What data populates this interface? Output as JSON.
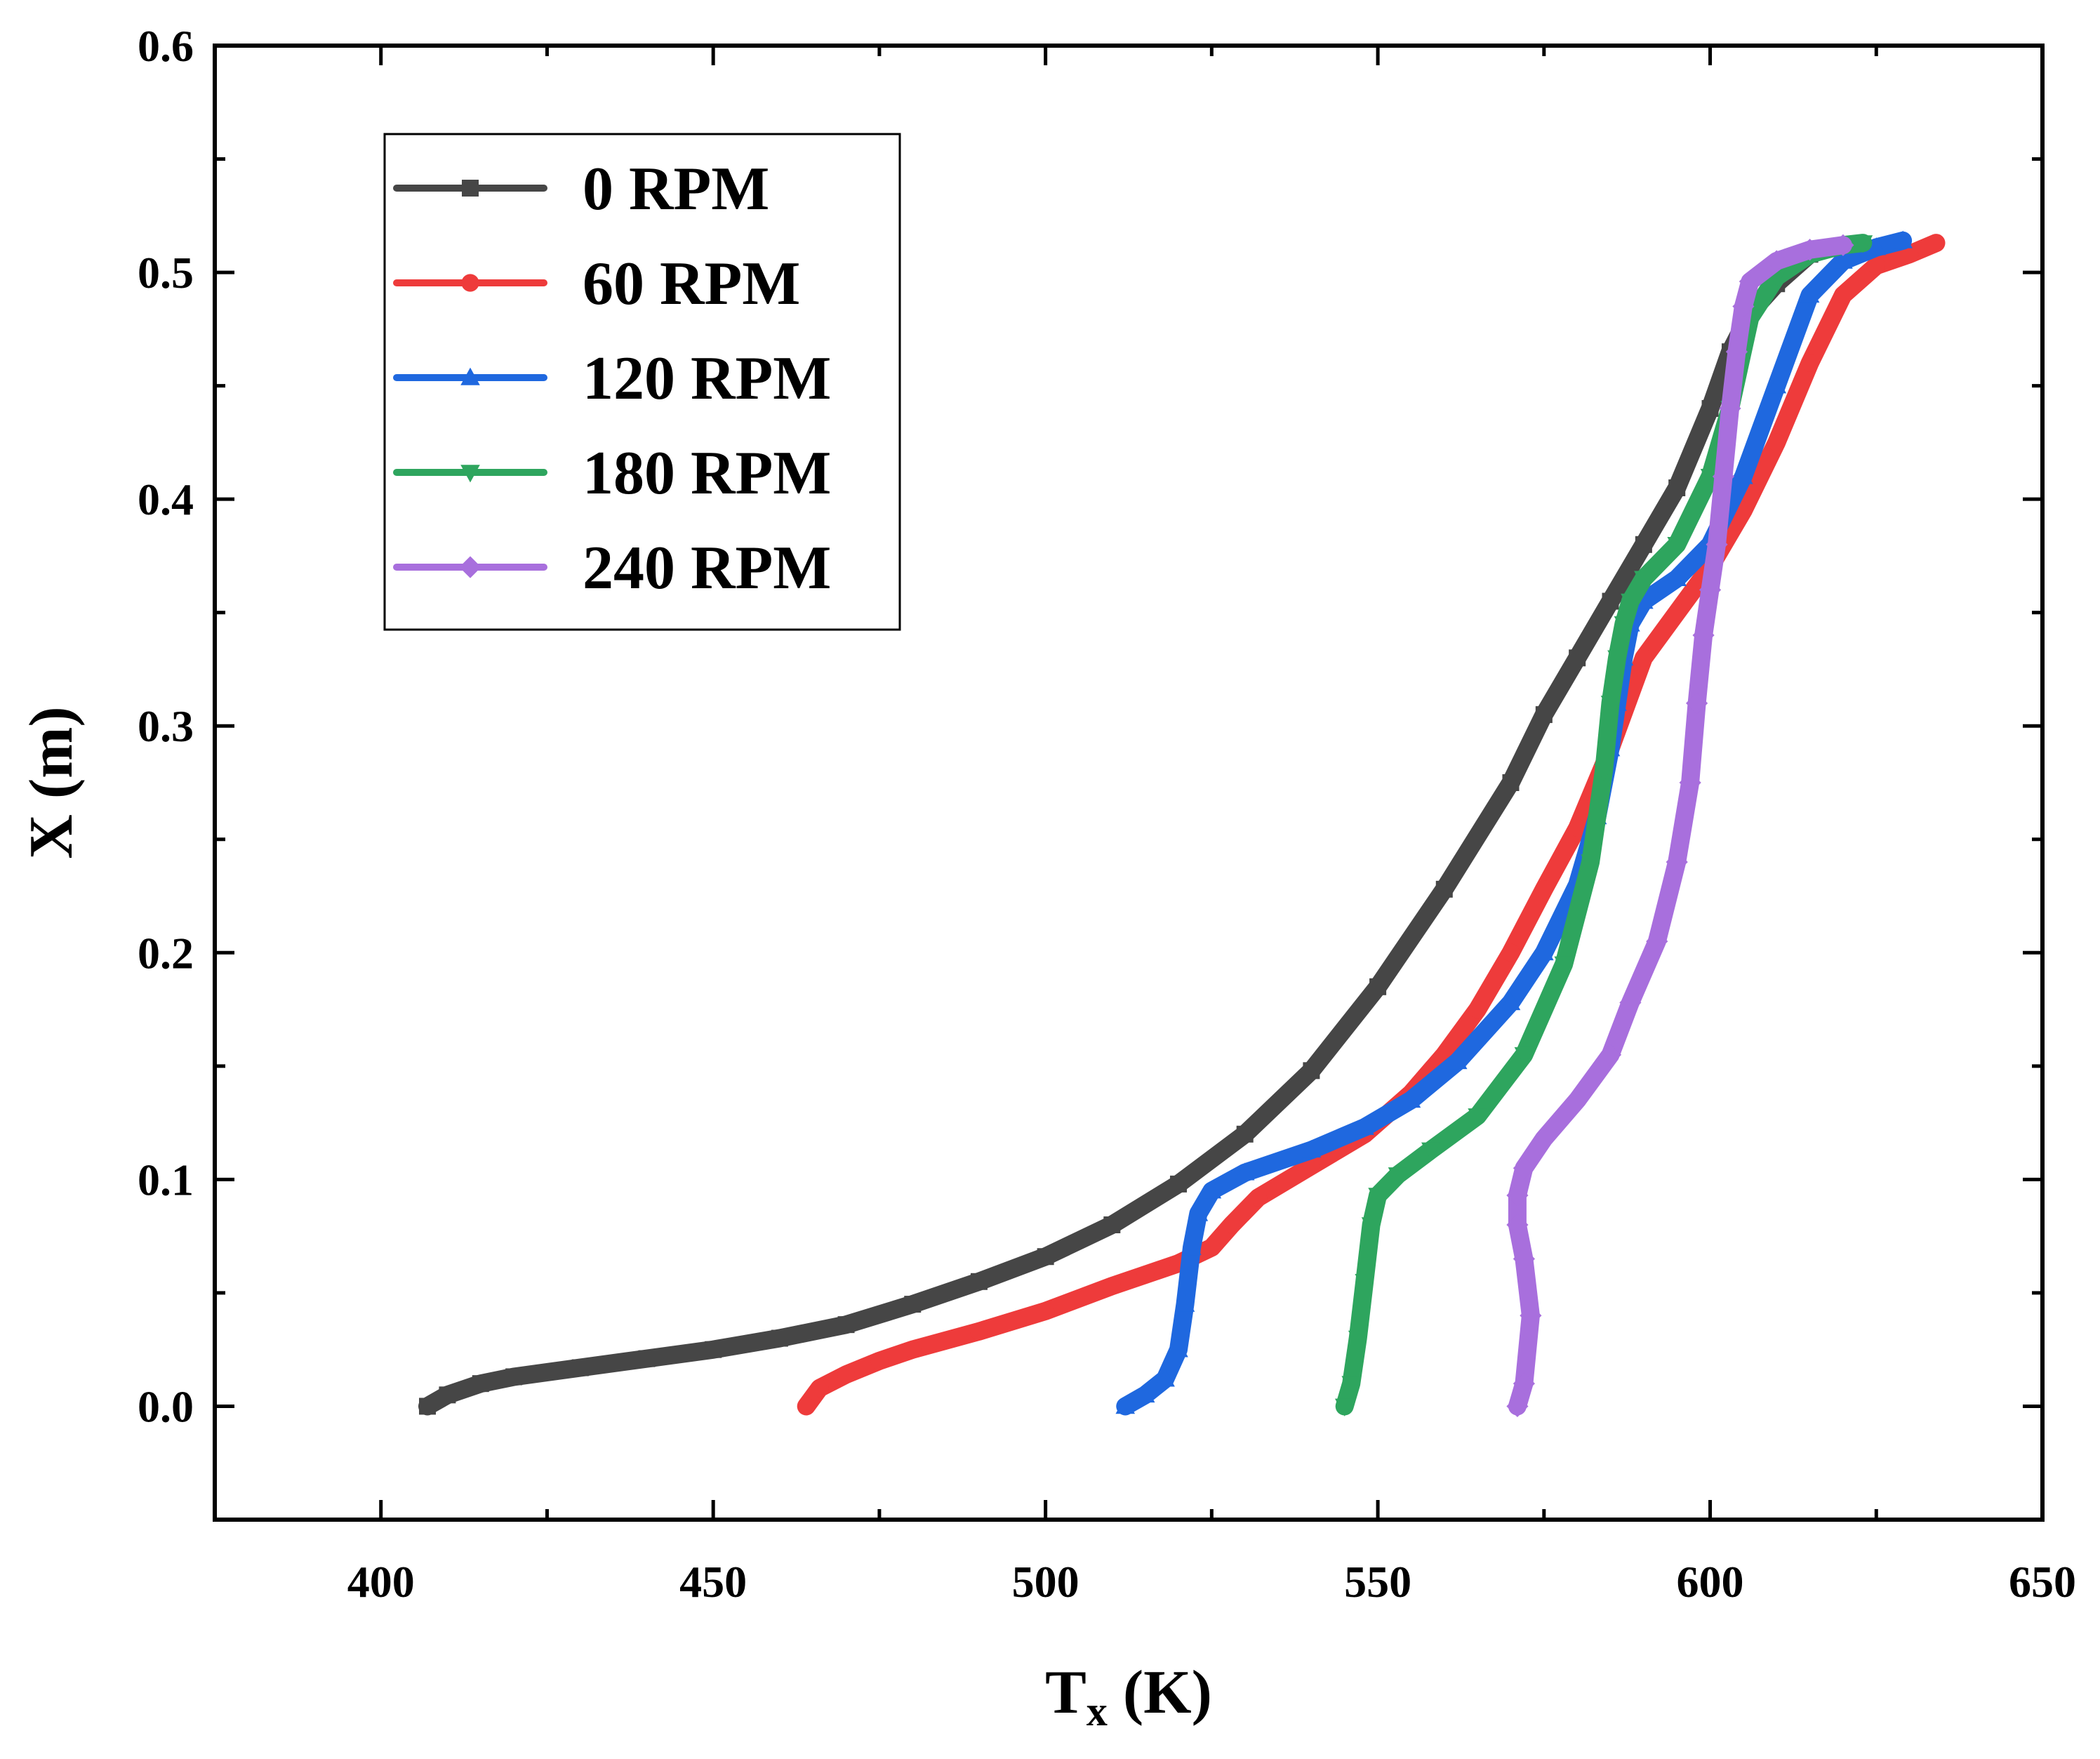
{
  "chart_data": {
    "type": "line",
    "title": "",
    "xlabel": "T",
    "xlabel_sub": "x",
    "xlabel_unit": " (K)",
    "ylabel": "X (m)",
    "xlim": [
      375,
      650
    ],
    "ylim": [
      -0.05,
      0.6
    ],
    "xticks": [
      400,
      450,
      500,
      550,
      600,
      650
    ],
    "xtick_labels": [
      "400",
      "450",
      "500",
      "550",
      "600",
      "650"
    ],
    "yticks": [
      0.0,
      0.1,
      0.2,
      0.3,
      0.4,
      0.5,
      0.6
    ],
    "ytick_labels": [
      "0.0",
      "0.1",
      "0.2",
      "0.3",
      "0.4",
      "0.5",
      "0.6"
    ],
    "grid": false,
    "legend_position": "top-left",
    "series": [
      {
        "name": "0 RPM",
        "color": "#464646",
        "marker": "square",
        "x": [
          407,
          410,
          415,
          420,
          430,
          440,
          450,
          460,
          470,
          480,
          490,
          500,
          510,
          520,
          530,
          540,
          550,
          560,
          570,
          575,
          580,
          585,
          590,
          595,
          600,
          603,
          606,
          610,
          615
        ],
        "y": [
          0.0,
          0.005,
          0.01,
          0.013,
          0.017,
          0.021,
          0.025,
          0.03,
          0.036,
          0.045,
          0.055,
          0.066,
          0.08,
          0.098,
          0.12,
          0.148,
          0.185,
          0.228,
          0.275,
          0.305,
          0.33,
          0.355,
          0.38,
          0.405,
          0.44,
          0.465,
          0.482,
          0.495,
          0.508
        ]
      },
      {
        "name": "60 RPM",
        "color": "#ee3b3b",
        "marker": "circle",
        "x": [
          464,
          466,
          470,
          475,
          480,
          490,
          500,
          510,
          515,
          520,
          525,
          528,
          532,
          540,
          548,
          555,
          560,
          565,
          570,
          575,
          580,
          585,
          590,
          595,
          600,
          605,
          610,
          615,
          620,
          625,
          630,
          634
        ],
        "y": [
          0.0,
          0.008,
          0.014,
          0.02,
          0.025,
          0.033,
          0.042,
          0.053,
          0.058,
          0.063,
          0.07,
          0.08,
          0.092,
          0.106,
          0.12,
          0.138,
          0.155,
          0.175,
          0.2,
          0.228,
          0.255,
          0.29,
          0.33,
          0.35,
          0.37,
          0.395,
          0.425,
          0.46,
          0.49,
          0.503,
          0.508,
          0.513
        ]
      },
      {
        "name": "120 RPM",
        "color": "#1f68df",
        "marker": "triangle-up",
        "x": [
          512,
          515,
          518,
          520,
          521,
          522,
          523,
          525,
          530,
          540,
          548,
          555,
          562,
          570,
          575,
          580,
          583,
          585,
          586,
          587,
          588,
          590,
          595,
          600,
          605,
          610,
          615,
          620,
          625,
          629
        ],
        "y": [
          0.0,
          0.005,
          0.012,
          0.025,
          0.045,
          0.07,
          0.085,
          0.095,
          0.103,
          0.113,
          0.123,
          0.135,
          0.152,
          0.178,
          0.2,
          0.23,
          0.26,
          0.29,
          0.31,
          0.33,
          0.345,
          0.355,
          0.365,
          0.38,
          0.41,
          0.45,
          0.49,
          0.505,
          0.511,
          0.514
        ]
      },
      {
        "name": "180 RPM",
        "color": "#2ea55e",
        "marker": "triangle-down",
        "x": [
          545,
          546,
          547,
          548,
          549,
          550,
          553,
          558,
          565,
          572,
          578,
          582,
          584,
          585,
          586,
          587,
          588,
          590,
          595,
          600,
          603,
          606,
          610,
          615,
          620,
          623
        ],
        "y": [
          0.0,
          0.01,
          0.03,
          0.055,
          0.08,
          0.093,
          0.102,
          0.113,
          0.128,
          0.155,
          0.195,
          0.24,
          0.28,
          0.31,
          0.33,
          0.345,
          0.355,
          0.365,
          0.38,
          0.41,
          0.44,
          0.48,
          0.498,
          0.508,
          0.512,
          0.513
        ]
      },
      {
        "name": "240 RPM",
        "color": "#a86fdd",
        "marker": "diamond",
        "x": [
          571,
          572,
          573,
          572,
          571,
          571,
          572,
          575,
          580,
          585,
          588,
          592,
          595,
          597,
          598,
          599,
          600,
          601,
          602,
          603,
          604,
          605,
          606,
          610,
          615,
          620
        ],
        "y": [
          0.0,
          0.01,
          0.04,
          0.065,
          0.08,
          0.093,
          0.105,
          0.118,
          0.135,
          0.155,
          0.178,
          0.205,
          0.24,
          0.275,
          0.31,
          0.34,
          0.36,
          0.38,
          0.41,
          0.44,
          0.465,
          0.485,
          0.496,
          0.505,
          0.51,
          0.512
        ]
      }
    ]
  }
}
